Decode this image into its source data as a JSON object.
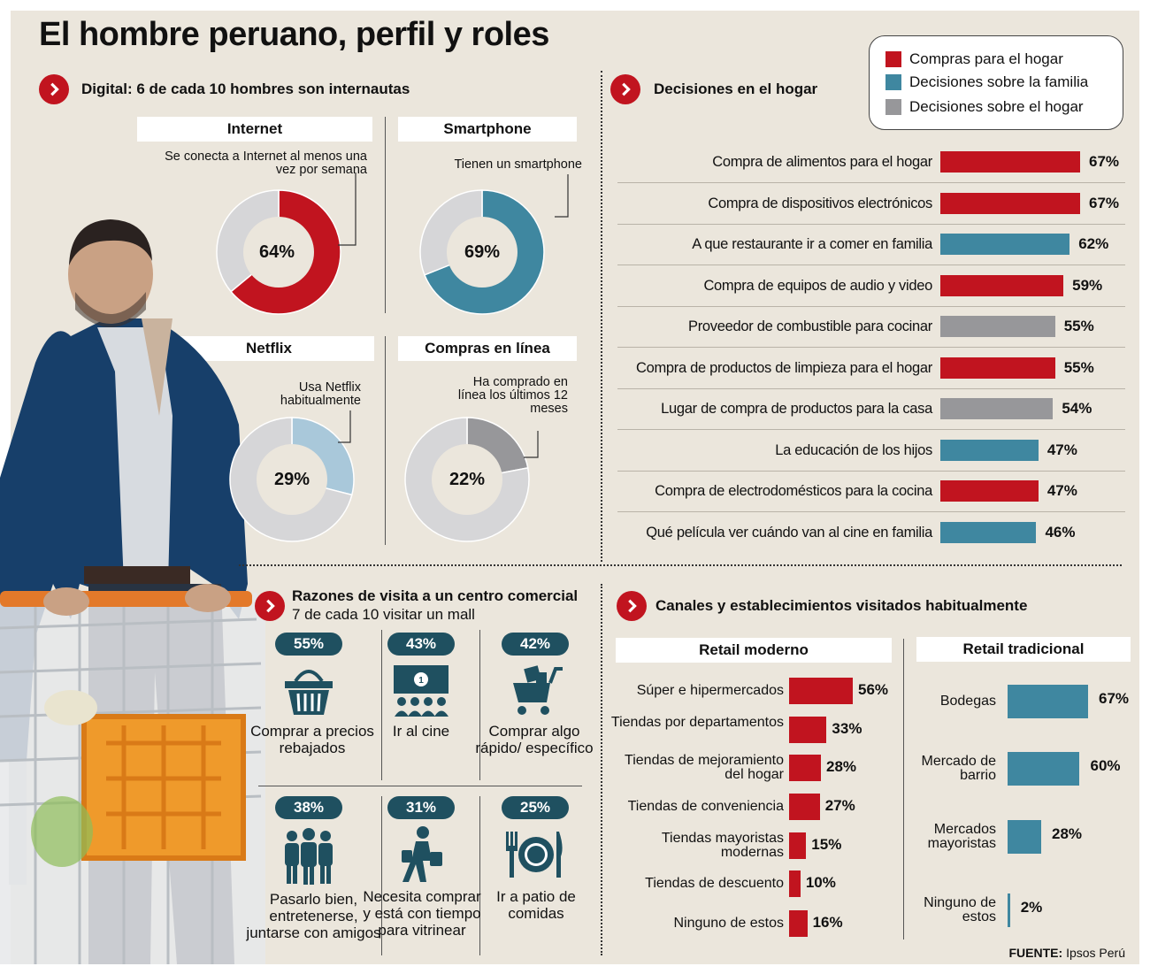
{
  "title": "El hombre peruano, perfil y roles",
  "digital": {
    "heading": "Digital: 6 de cada 10 hombres son internautas",
    "panels": [
      {
        "label": "Internet",
        "note": "Se conecta a Internet al menos una vez por semana",
        "value_label": "64%"
      },
      {
        "label": "Smartphone",
        "note": "Tienen un smartphone",
        "value_label": "69%"
      },
      {
        "label": "Netflix",
        "note": "Usa Netflix habitualmente",
        "value_label": "29%"
      },
      {
        "label": "Compras en línea",
        "note": "Ha comprado en línea los últimos 12 meses",
        "value_label": "22%"
      }
    ]
  },
  "legend": {
    "items": [
      {
        "label": "Compras para el hogar",
        "color": "#c1141f"
      },
      {
        "label": "Decisiones sobre la familia",
        "color": "#3f87a0"
      },
      {
        "label": "Decisiones sobre el hogar",
        "color": "#97979a"
      }
    ]
  },
  "decisiones": {
    "heading": "Decisiones en el hogar"
  },
  "mall": {
    "heading": "Razones de visita a un centro comercial",
    "subheading": "7 de cada 10 visitar un mall",
    "items": [
      {
        "pct": "55%",
        "label": "Comprar a precios rebajados",
        "icon": "shopping-basket-icon"
      },
      {
        "pct": "43%",
        "label": "Ir al cine",
        "icon": "cinema-screen-icon"
      },
      {
        "pct": "42%",
        "label": "Comprar algo rápido/ específico",
        "icon": "shopping-cart-icon"
      },
      {
        "pct": "38%",
        "label": "Pasarlo bien, entretenerse, juntarse con amigos",
        "icon": "group-of-friends-icon"
      },
      {
        "pct": "31%",
        "label": "Necesita comprar y está con tiempo para vitrinear",
        "icon": "walking-shopper-icon"
      },
      {
        "pct": "25%",
        "label": "Ir a patio de comidas",
        "icon": "fork-plate-knife-icon"
      }
    ]
  },
  "canales": {
    "heading": "Canales y establecimientos visitados habitualmente",
    "moderno_title": "Retail moderno",
    "tradicional_title": "Retail tradicional"
  },
  "source": {
    "label": "FUENTE:",
    "text": "Ipsos Perú"
  },
  "chart_data": [
    {
      "type": "pie",
      "title": "Internet",
      "categories": [
        "Se conecta a Internet al menos una vez por semana",
        "Resto"
      ],
      "values": [
        64,
        36
      ],
      "colors": [
        "#c1141f",
        "#d6d6d8"
      ]
    },
    {
      "type": "pie",
      "title": "Smartphone",
      "categories": [
        "Tienen un smartphone",
        "Resto"
      ],
      "values": [
        69,
        31
      ],
      "colors": [
        "#3f87a0",
        "#d6d6d8"
      ]
    },
    {
      "type": "pie",
      "title": "Netflix",
      "categories": [
        "Usa Netflix habitualmente",
        "Resto"
      ],
      "values": [
        29,
        71
      ],
      "colors": [
        "#a9c8da",
        "#d6d6d8"
      ]
    },
    {
      "type": "pie",
      "title": "Compras en línea",
      "categories": [
        "Ha comprado en línea los últimos 12 meses",
        "Resto"
      ],
      "values": [
        22,
        78
      ],
      "colors": [
        "#97979a",
        "#d6d6d8"
      ]
    },
    {
      "type": "bar",
      "title": "Decisiones en el hogar",
      "orientation": "horizontal",
      "categories": [
        "Compra de alimentos para el hogar",
        "Compra de dispositivos electrónicos",
        "A que restaurante ir a comer en familia",
        "Compra de equipos de audio y video",
        "Proveedor de combustible para cocinar",
        "Compra de productos de limpieza para el hogar",
        "Lugar de compra de productos para la casa",
        "La educación de los hijos",
        "Compra de electrodomésticos para la cocina",
        "Qué película ver cuándo van al cine en familia"
      ],
      "values": [
        67,
        67,
        62,
        59,
        55,
        55,
        54,
        47,
        47,
        46
      ],
      "value_labels": [
        "67%",
        "67%",
        "62%",
        "59%",
        "55%",
        "55%",
        "54%",
        "47%",
        "47%",
        "46%"
      ],
      "groups": [
        0,
        0,
        1,
        0,
        2,
        0,
        2,
        1,
        0,
        1
      ]
    },
    {
      "type": "bar",
      "title": "Retail moderno",
      "orientation": "horizontal",
      "color": "#c1141f",
      "categories": [
        "Súper e hipermercados",
        "Tiendas por departamentos",
        "Tiendas de mejoramiento del hogar",
        "Tiendas de conveniencia",
        "Tiendas mayoristas modernas",
        "Tiendas de descuento",
        "Ninguno de estos"
      ],
      "values": [
        56,
        33,
        28,
        27,
        15,
        10,
        16
      ],
      "value_labels": [
        "56%",
        "33%",
        "28%",
        "27%",
        "15%",
        "10%",
        "16%"
      ]
    },
    {
      "type": "bar",
      "title": "Retail tradicional",
      "orientation": "horizontal",
      "color": "#3f87a0",
      "categories": [
        "Bodegas",
        "Mercado de barrio",
        "Mercados mayoristas",
        "Ninguno de estos"
      ],
      "values": [
        67,
        60,
        28,
        2
      ],
      "value_labels": [
        "67%",
        "60%",
        "28%",
        "2%"
      ]
    }
  ]
}
